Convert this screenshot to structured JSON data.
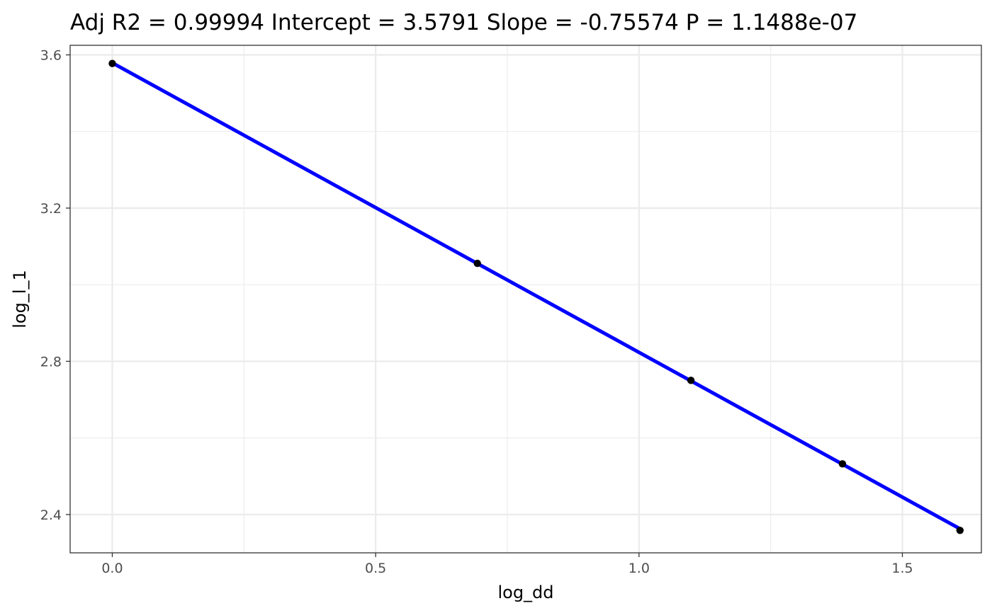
{
  "chart_data": {
    "type": "scatter",
    "title": "Adj R2 =  0.99994 Intercept = 3.5791  Slope = -0.75574  P = 1.1488e-07",
    "xlabel": "log_dd",
    "ylabel": "log_l_1",
    "xlim": [
      -0.08,
      1.65
    ],
    "ylim": [
      2.3,
      3.625
    ],
    "x_ticks": [
      0.0,
      0.5,
      1.0,
      1.5
    ],
    "x_tick_labels": [
      "0.0",
      "0.5",
      "1.0",
      "1.5"
    ],
    "y_ticks": [
      2.4,
      2.8,
      3.2,
      3.6
    ],
    "y_tick_labels": [
      "2.4",
      "2.8",
      "3.2",
      "3.6"
    ],
    "x_minor_ticks": [
      0.25,
      0.75,
      1.25
    ],
    "y_minor_ticks": [
      2.6,
      3.0,
      3.4
    ],
    "grid": true,
    "legend": "none",
    "series": [
      {
        "name": "observed",
        "type": "scatter",
        "color": "#000000",
        "x": [
          0.0,
          0.6931,
          1.0986,
          1.3863,
          1.6094
        ],
        "y": [
          3.5775,
          3.0557,
          2.7502,
          2.5322,
          2.3586
        ]
      },
      {
        "name": "fit",
        "type": "line",
        "color": "#0000ff",
        "intercept": 3.5791,
        "slope": -0.75574,
        "x_range": [
          0.0,
          1.6094
        ]
      }
    ]
  }
}
